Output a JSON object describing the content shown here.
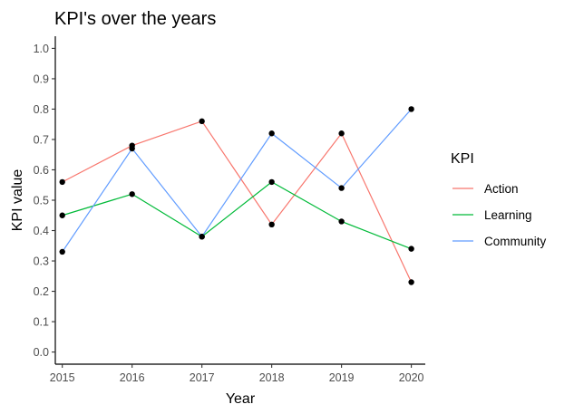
{
  "chart_data": {
    "type": "line",
    "title": "KPI's over the years",
    "xlabel": "Year",
    "ylabel": "KPI value",
    "x": [
      2015,
      2016,
      2017,
      2018,
      2019,
      2020
    ],
    "x_tick_labels": [
      "2015",
      "2016",
      "2017",
      "2018",
      "2019",
      "2020"
    ],
    "xlim": [
      2014.9,
      2020.2
    ],
    "ylim": [
      -0.04,
      1.04
    ],
    "y_ticks": [
      0.0,
      0.1,
      0.2,
      0.3,
      0.4,
      0.5,
      0.6,
      0.7,
      0.8,
      0.9,
      1.0
    ],
    "y_tick_labels": [
      "0.0",
      "0.1",
      "0.2",
      "0.3",
      "0.4",
      "0.5",
      "0.6",
      "0.7",
      "0.8",
      "0.9",
      "1.0"
    ],
    "grid": false,
    "legend_position": "right",
    "legend_title": "KPI",
    "series": [
      {
        "name": "Action",
        "color": "#F8766D",
        "values": [
          0.56,
          0.68,
          0.76,
          0.42,
          0.72,
          0.23
        ]
      },
      {
        "name": "Learning",
        "color": "#00BA38",
        "values": [
          0.45,
          0.52,
          0.38,
          0.56,
          0.43,
          0.34
        ]
      },
      {
        "name": "Community",
        "color": "#619CFF",
        "values": [
          0.33,
          0.67,
          0.38,
          0.72,
          0.54,
          0.8
        ]
      }
    ],
    "point_color": "#000000"
  }
}
